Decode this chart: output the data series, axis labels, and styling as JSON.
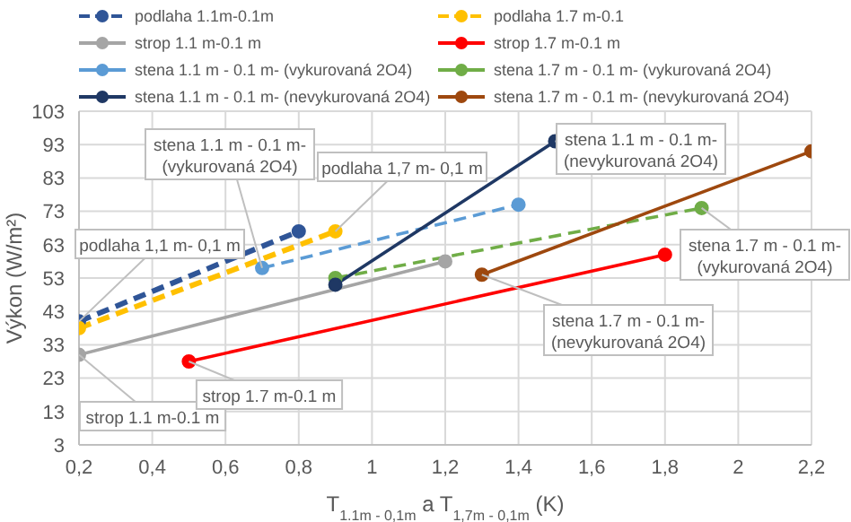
{
  "chart_data": {
    "type": "line",
    "xlabel": "T$_{1.1m - 0,1m}$ a T$_{1,7m - 0,1m}$ (K)",
    "ylabel": "Výkon (W/m²)",
    "xlim": [
      0.2,
      2.2
    ],
    "xticks": [
      {
        "value": 0.2,
        "label": "0,2"
      },
      {
        "value": 0.4,
        "label": "0,4"
      },
      {
        "value": 0.6,
        "label": "0,6"
      },
      {
        "value": 0.8,
        "label": "0,8"
      },
      1,
      {
        "value": 1.2,
        "label": "1,2"
      },
      {
        "value": 1.4,
        "label": "1,4"
      },
      {
        "value": 1.6,
        "label": "1,6"
      },
      {
        "value": 1.8,
        "label": "1,8"
      },
      2,
      {
        "value": 2.2,
        "label": "2,2"
      }
    ],
    "ylim": [
      3,
      103
    ],
    "yticks": [
      3,
      13,
      23,
      33,
      43,
      53,
      63,
      73,
      83,
      93,
      103
    ],
    "grid": true,
    "legend": "top",
    "marker": "circle",
    "series": [
      {
        "name": "podlaha 1.1m-0.1m",
        "color": "#2f5597",
        "line_style": "dashed",
        "x": [
          0.2,
          0.8
        ],
        "values": [
          40,
          67
        ]
      },
      {
        "name": "podlaha 1.7 m-0.1",
        "color": "#ffc000",
        "line_style": "dashed",
        "x": [
          0.2,
          0.9
        ],
        "values": [
          38,
          67
        ]
      },
      {
        "name": "strop 1.1 m-0.1 m",
        "color": "#a5a5a5",
        "line_style": "solid",
        "x": [
          0.2,
          1.2
        ],
        "values": [
          30,
          58
        ]
      },
      {
        "name": "strop 1.7 m-0.1 m",
        "color": "#ff0000",
        "line_style": "solid",
        "x": [
          0.5,
          1.8
        ],
        "values": [
          28,
          60
        ]
      },
      {
        "name": "stena 1.1 m - 0.1 m- (vykurovaná 2O4)",
        "color": "#5b9bd5",
        "line_style": "dashed",
        "x": [
          0.7,
          1.4
        ],
        "values": [
          56,
          75
        ]
      },
      {
        "name": "stena 1.7 m - 0.1 m- (vykurovaná 2O4)",
        "color": "#70ad47",
        "line_style": "dashed",
        "x": [
          0.9,
          1.9
        ],
        "values": [
          53,
          74
        ]
      },
      {
        "name": "stena 1.1 m - 0.1 m- (nevykurovaná 2O4)",
        "color": "#1f3864",
        "line_style": "solid",
        "x": [
          0.9,
          1.5
        ],
        "values": [
          51,
          94
        ]
      },
      {
        "name": "stena 1.7 m - 0.1 m- (nevykurovaná 2O4)",
        "color": "#9e480e",
        "line_style": "solid",
        "x": [
          1.3,
          2.2
        ],
        "values": [
          54,
          91
        ]
      }
    ],
    "annotations": [
      {
        "text": "podlaha 1,1 m- 0,1 m",
        "x": 0.2,
        "y": 40
      },
      {
        "text": "strop 1.1 m-0.1 m",
        "x": 0.2,
        "y": 30
      },
      {
        "text": "strop 1.7 m-0.1 m",
        "x": 0.5,
        "y": 28
      },
      {
        "text": "stena 1.1 m - 0.1 m- (vykurovaná 2O4)",
        "x": 0.7,
        "y": 56
      },
      {
        "text": "podlaha 1,7 m- 0,1 m",
        "x": 0.9,
        "y": 67
      },
      {
        "text": "stena 1.1 m - 0.1 m- (nevykurovaná 2O4)",
        "x": 1.5,
        "y": 94
      },
      {
        "text": "stena 1.7 m - 0.1 m- (vykurovaná 2O4)",
        "x": 1.9,
        "y": 74
      },
      {
        "text": "stena 1.7 m - 0.1 m- (nevykurovaná 2O4)",
        "x": 1.3,
        "y": 54
      }
    ]
  }
}
